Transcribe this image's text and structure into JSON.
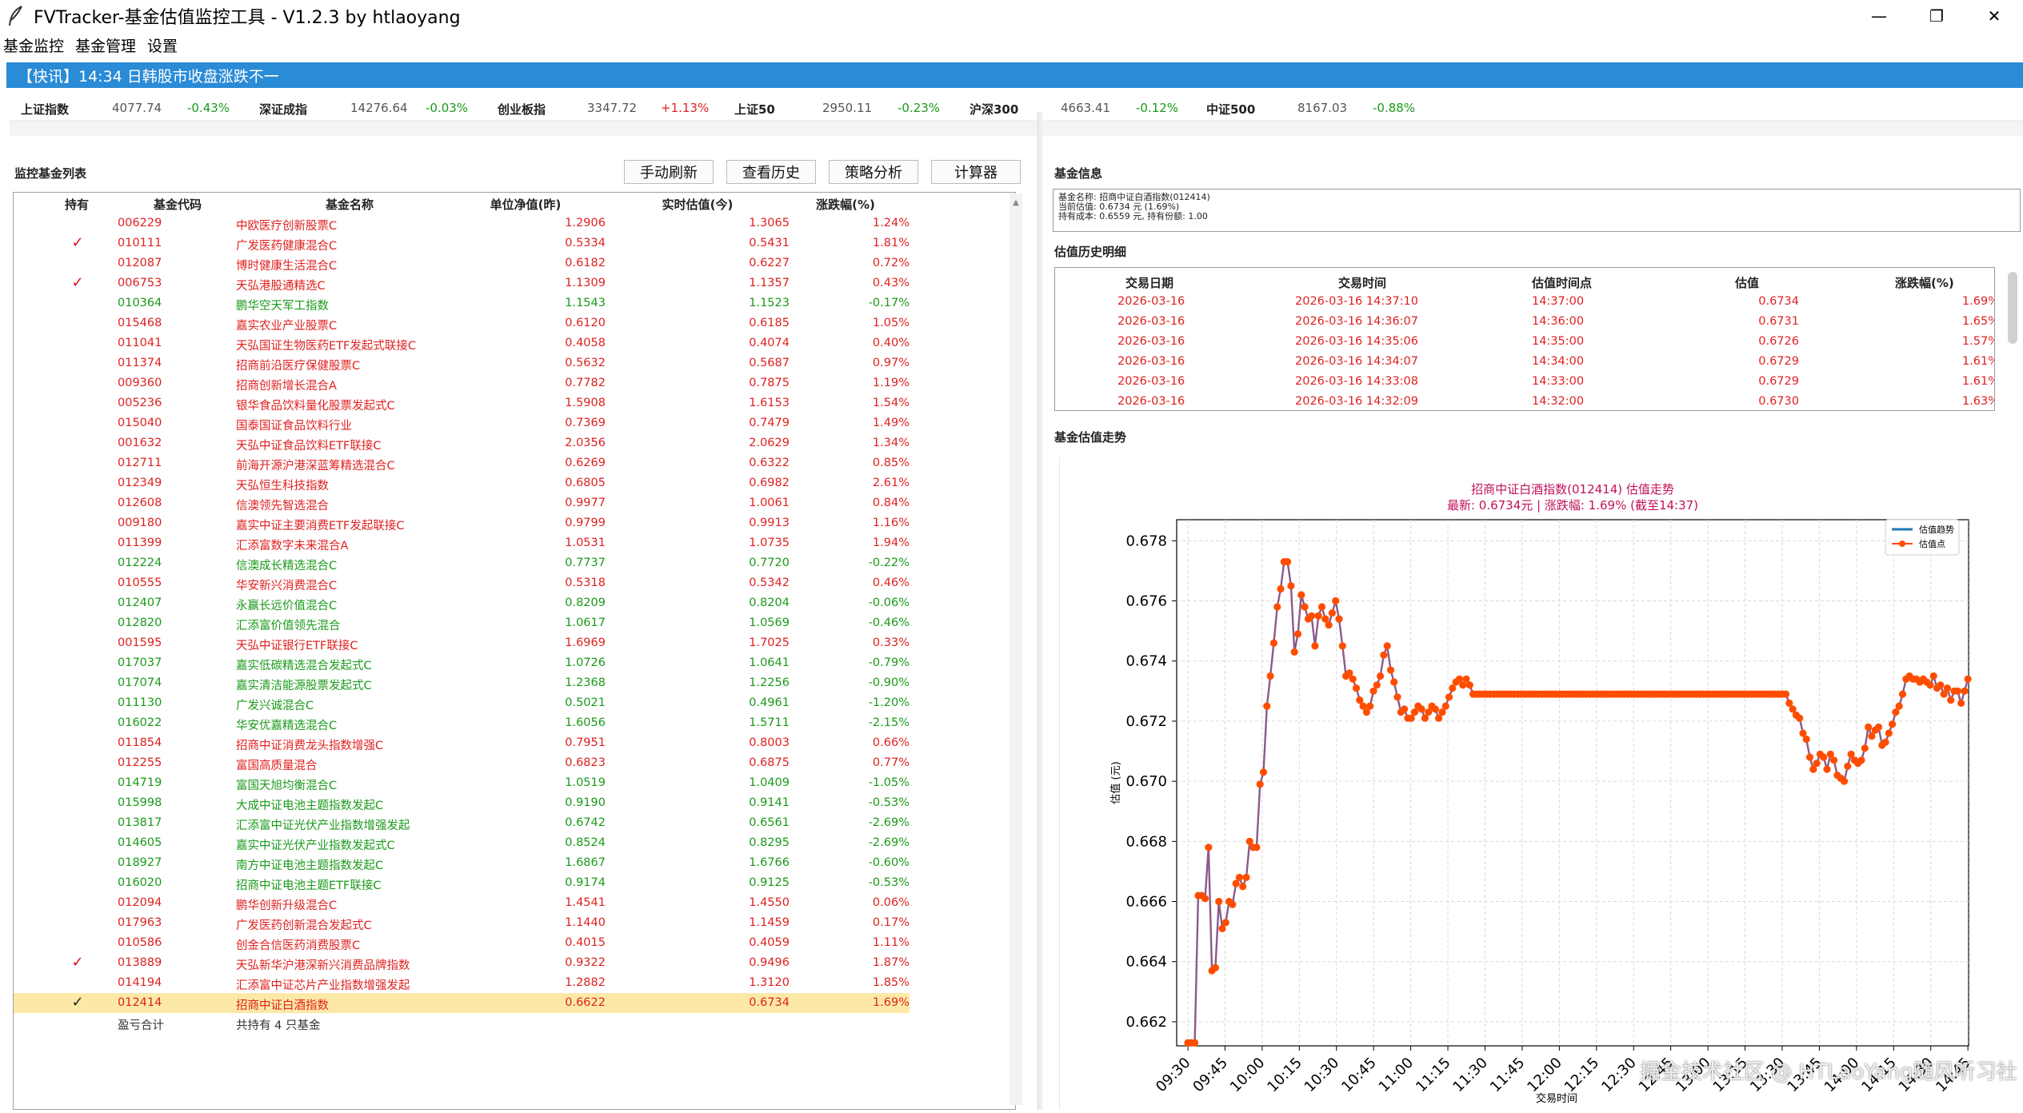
{
  "window": {
    "title": "FVTracker-基金估值监控工具 - V1.2.3    by htlaoyang",
    "minimize": "—",
    "restore": "❐",
    "close": "✕"
  },
  "menu": [
    "基金监控",
    "基金管理",
    "设置"
  ],
  "ticker": "【快讯】14:34 日韩股市收盘涨跌不一",
  "indices": [
    {
      "name": "上证指数",
      "value": "4077.74",
      "change": "-0.43%",
      "dir": "down"
    },
    {
      "name": "深证成指",
      "value": "14276.64",
      "change": "-0.03%",
      "dir": "down"
    },
    {
      "name": "创业板指",
      "value": "3347.72",
      "change": "+1.13%",
      "dir": "up"
    },
    {
      "name": "上证50",
      "value": "2950.11",
      "change": "-0.23%",
      "dir": "down"
    },
    {
      "name": "沪深300",
      "value": "4663.41",
      "change": "-0.12%",
      "dir": "down"
    },
    {
      "name": "中证500",
      "value": "8167.03",
      "change": "-0.88%",
      "dir": "down"
    }
  ],
  "left": {
    "title": "监控基金列表",
    "buttons": [
      "手动刷新",
      "查看历史",
      "策略分析",
      "计算器"
    ],
    "columns": [
      "持有",
      "基金代码",
      "基金名称",
      "单位净值(昨)",
      "实时估值(今)",
      "涨跌幅(%)"
    ],
    "rows": [
      {
        "hold": "",
        "code": "006229",
        "name": "中欧医疗创新股票C",
        "nav": "1.2906",
        "est": "1.3065",
        "chg": "1.24%",
        "dir": "up"
      },
      {
        "hold": "✓",
        "code": "010111",
        "name": "广发医药健康混合C",
        "nav": "0.5334",
        "est": "0.5431",
        "chg": "1.81%",
        "dir": "up"
      },
      {
        "hold": "",
        "code": "012087",
        "name": "博时健康生活混合C",
        "nav": "0.6182",
        "est": "0.6227",
        "chg": "0.72%",
        "dir": "up"
      },
      {
        "hold": "✓",
        "code": "006753",
        "name": "天弘港股通精选C",
        "nav": "1.1309",
        "est": "1.1357",
        "chg": "0.43%",
        "dir": "up"
      },
      {
        "hold": "",
        "code": "010364",
        "name": "鹏华空天军工指数",
        "nav": "1.1543",
        "est": "1.1523",
        "chg": "-0.17%",
        "dir": "down"
      },
      {
        "hold": "",
        "code": "015468",
        "name": "嘉实农业产业股票C",
        "nav": "0.6120",
        "est": "0.6185",
        "chg": "1.05%",
        "dir": "up"
      },
      {
        "hold": "",
        "code": "011041",
        "name": "天弘国证生物医药ETF发起式联接C",
        "nav": "0.4058",
        "est": "0.4074",
        "chg": "0.40%",
        "dir": "up"
      },
      {
        "hold": "",
        "code": "011374",
        "name": "招商前沿医疗保健股票C",
        "nav": "0.5632",
        "est": "0.5687",
        "chg": "0.97%",
        "dir": "up"
      },
      {
        "hold": "",
        "code": "009360",
        "name": "招商创新增长混合A",
        "nav": "0.7782",
        "est": "0.7875",
        "chg": "1.19%",
        "dir": "up"
      },
      {
        "hold": "",
        "code": "005236",
        "name": "银华食品饮料量化股票发起式C",
        "nav": "1.5908",
        "est": "1.6153",
        "chg": "1.54%",
        "dir": "up"
      },
      {
        "hold": "",
        "code": "015040",
        "name": "国泰国证食品饮料行业",
        "nav": "0.7369",
        "est": "0.7479",
        "chg": "1.49%",
        "dir": "up"
      },
      {
        "hold": "",
        "code": "001632",
        "name": "天弘中证食品饮料ETF联接C",
        "nav": "2.0356",
        "est": "2.0629",
        "chg": "1.34%",
        "dir": "up"
      },
      {
        "hold": "",
        "code": "012711",
        "name": "前海开源沪港深蓝筹精选混合C",
        "nav": "0.6269",
        "est": "0.6322",
        "chg": "0.85%",
        "dir": "up"
      },
      {
        "hold": "",
        "code": "012349",
        "name": "天弘恒生科技指数",
        "nav": "0.6805",
        "est": "0.6982",
        "chg": "2.61%",
        "dir": "up"
      },
      {
        "hold": "",
        "code": "012608",
        "name": "信澳领先智选混合",
        "nav": "0.9977",
        "est": "1.0061",
        "chg": "0.84%",
        "dir": "up"
      },
      {
        "hold": "",
        "code": "009180",
        "name": "嘉实中证主要消费ETF发起联接C",
        "nav": "0.9799",
        "est": "0.9913",
        "chg": "1.16%",
        "dir": "up"
      },
      {
        "hold": "",
        "code": "011399",
        "name": "汇添富数字未来混合A",
        "nav": "1.0531",
        "est": "1.0735",
        "chg": "1.94%",
        "dir": "up"
      },
      {
        "hold": "",
        "code": "012224",
        "name": "信澳成长精选混合C",
        "nav": "0.7737",
        "est": "0.7720",
        "chg": "-0.22%",
        "dir": "down"
      },
      {
        "hold": "",
        "code": "010555",
        "name": "华安新兴消费混合C",
        "nav": "0.5318",
        "est": "0.5342",
        "chg": "0.46%",
        "dir": "up"
      },
      {
        "hold": "",
        "code": "012407",
        "name": "永赢长远价值混合C",
        "nav": "0.8209",
        "est": "0.8204",
        "chg": "-0.06%",
        "dir": "down"
      },
      {
        "hold": "",
        "code": "012820",
        "name": "汇添富价值领先混合",
        "nav": "1.0617",
        "est": "1.0569",
        "chg": "-0.46%",
        "dir": "down"
      },
      {
        "hold": "",
        "code": "001595",
        "name": "天弘中证银行ETF联接C",
        "nav": "1.6969",
        "est": "1.7025",
        "chg": "0.33%",
        "dir": "up"
      },
      {
        "hold": "",
        "code": "017037",
        "name": "嘉实低碳精选混合发起式C",
        "nav": "1.0726",
        "est": "1.0641",
        "chg": "-0.79%",
        "dir": "down"
      },
      {
        "hold": "",
        "code": "017074",
        "name": "嘉实清洁能源股票发起式C",
        "nav": "1.2368",
        "est": "1.2256",
        "chg": "-0.90%",
        "dir": "down"
      },
      {
        "hold": "",
        "code": "011130",
        "name": "广发兴诚混合C",
        "nav": "0.5021",
        "est": "0.4961",
        "chg": "-1.20%",
        "dir": "down"
      },
      {
        "hold": "",
        "code": "016022",
        "name": "华安优嘉精选混合C",
        "nav": "1.6056",
        "est": "1.5711",
        "chg": "-2.15%",
        "dir": "down"
      },
      {
        "hold": "",
        "code": "011854",
        "name": "招商中证消费龙头指数增强C",
        "nav": "0.7951",
        "est": "0.8003",
        "chg": "0.66%",
        "dir": "up"
      },
      {
        "hold": "",
        "code": "012255",
        "name": "富国高质量混合",
        "nav": "0.6823",
        "est": "0.6875",
        "chg": "0.77%",
        "dir": "up"
      },
      {
        "hold": "",
        "code": "014719",
        "name": "富国天旭均衡混合C",
        "nav": "1.0519",
        "est": "1.0409",
        "chg": "-1.05%",
        "dir": "down"
      },
      {
        "hold": "",
        "code": "015998",
        "name": "大成中证电池主题指数发起C",
        "nav": "0.9190",
        "est": "0.9141",
        "chg": "-0.53%",
        "dir": "down"
      },
      {
        "hold": "",
        "code": "013817",
        "name": "汇添富中证光伏产业指数增强发起",
        "nav": "0.6742",
        "est": "0.6561",
        "chg": "-2.69%",
        "dir": "down"
      },
      {
        "hold": "",
        "code": "014605",
        "name": "嘉实中证光伏产业指数发起式C",
        "nav": "0.8524",
        "est": "0.8295",
        "chg": "-2.69%",
        "dir": "down"
      },
      {
        "hold": "",
        "code": "018927",
        "name": "南方中证电池主题指数发起C",
        "nav": "1.6867",
        "est": "1.6766",
        "chg": "-0.60%",
        "dir": "down"
      },
      {
        "hold": "",
        "code": "016020",
        "name": "招商中证电池主题ETF联接C",
        "nav": "0.9174",
        "est": "0.9125",
        "chg": "-0.53%",
        "dir": "down"
      },
      {
        "hold": "",
        "code": "012094",
        "name": "鹏华创新升级混合C",
        "nav": "1.4541",
        "est": "1.4550",
        "chg": "0.06%",
        "dir": "up"
      },
      {
        "hold": "",
        "code": "017963",
        "name": "广发医药创新混合发起式C",
        "nav": "1.1440",
        "est": "1.1459",
        "chg": "0.17%",
        "dir": "up"
      },
      {
        "hold": "",
        "code": "010586",
        "name": "创金合信医药消费股票C",
        "nav": "0.4015",
        "est": "0.4059",
        "chg": "1.11%",
        "dir": "up"
      },
      {
        "hold": "✓",
        "code": "013889",
        "name": "天弘新华沪港深新兴消费品牌指数",
        "nav": "0.9322",
        "est": "0.9496",
        "chg": "1.87%",
        "dir": "up"
      },
      {
        "hold": "",
        "code": "014194",
        "name": "汇添富中证芯片产业指数增强发起",
        "nav": "1.2882",
        "est": "1.3120",
        "chg": "1.85%",
        "dir": "up"
      },
      {
        "hold": "✓",
        "code": "012414",
        "name": "招商中证白酒指数",
        "nav": "0.6622",
        "est": "0.6734",
        "chg": "1.69%",
        "dir": "up",
        "selected": true
      }
    ],
    "summary_label": "盈亏合计",
    "summary_text": "共持有 4 只基金"
  },
  "right": {
    "info_title": "基金信息",
    "info_lines": [
      "基金名称: 招商中证白酒指数(012414)",
      "当前估值: 0.6734 元 (1.69%)",
      "持有成本: 0.6559 元, 持有份额: 1.00"
    ],
    "history_title": "估值历史明细",
    "history_columns": [
      "交易日期",
      "交易时间",
      "估值时间点",
      "估值",
      "涨跌幅(%)"
    ],
    "history_rows": [
      [
        "2026-03-16",
        "2026-03-16 14:37:10",
        "14:37:00",
        "0.6734",
        "1.69%"
      ],
      [
        "2026-03-16",
        "2026-03-16 14:36:07",
        "14:36:00",
        "0.6731",
        "1.65%"
      ],
      [
        "2026-03-16",
        "2026-03-16 14:35:06",
        "14:35:00",
        "0.6726",
        "1.57%"
      ],
      [
        "2026-03-16",
        "2026-03-16 14:34:07",
        "14:34:00",
        "0.6729",
        "1.61%"
      ],
      [
        "2026-03-16",
        "2026-03-16 14:33:08",
        "14:33:00",
        "0.6729",
        "1.61%"
      ],
      [
        "2026-03-16",
        "2026-03-16 14:32:09",
        "14:32:00",
        "0.6730",
        "1.63%"
      ]
    ],
    "trend_title": "基金估值走势"
  },
  "watermark": "掘金技术社区 @ HTLaoYang随风听习社",
  "colors": {
    "up": "#e02020",
    "down": "#1a9a1a",
    "line": "#8b5a8a",
    "point": "#ff4d00",
    "legend_line": "#1f77b4"
  },
  "chart_data": {
    "type": "line",
    "title": "招商中证白酒指数(012414) 估值走势",
    "subtitle": "最新: 0.6734元 | 涨跌幅: 1.69% (截至14:37)",
    "xlabel": "交易时间",
    "ylabel": "估值 (元)",
    "ylim": [
      0.6612,
      0.6787
    ],
    "yticks": [
      "0.662",
      "0.664",
      "0.666",
      "0.668",
      "0.670",
      "0.672",
      "0.674",
      "0.676",
      "0.678"
    ],
    "xticks": [
      "09:30",
      "09:45",
      "10:00",
      "10:15",
      "10:30",
      "10:45",
      "11:00",
      "11:15",
      "11:30",
      "11:45",
      "12:00",
      "12:15",
      "12:30",
      "12:45",
      "13:00",
      "13:15",
      "13:30",
      "13:45",
      "14:00",
      "14:15",
      "14:30",
      "14:45"
    ],
    "legend": [
      "估值趋势",
      "估值点"
    ],
    "legend_position": "top-right",
    "grid": true,
    "series": [
      {
        "name": "估值趋势",
        "x": [
          0,
          1,
          2,
          3,
          4,
          5,
          6,
          7,
          8,
          9,
          10,
          11,
          12,
          13,
          14,
          15,
          16,
          17,
          18,
          19,
          20,
          21,
          22,
          23,
          24,
          25,
          26,
          27,
          28,
          29,
          30,
          31,
          32,
          33,
          34,
          35,
          36,
          37,
          38,
          39,
          40,
          41,
          42,
          43,
          44,
          45,
          46,
          47,
          48,
          49,
          50,
          51,
          52,
          53,
          54,
          55,
          56,
          57,
          58,
          59,
          60,
          61,
          62,
          63,
          64,
          65,
          66,
          67,
          68,
          69,
          70,
          71,
          72,
          73,
          74,
          75,
          76,
          77,
          78,
          79,
          80,
          81,
          82,
          83,
          84,
          85,
          86,
          87,
          88,
          89,
          90,
          91,
          92,
          93,
          94,
          95,
          96,
          97,
          98,
          99,
          100,
          101,
          102,
          103,
          104,
          105,
          106,
          107,
          108,
          109,
          110,
          111,
          112,
          113,
          114,
          115,
          116,
          117,
          118,
          119,
          120,
          121,
          122,
          123,
          124,
          125,
          126,
          127,
          128,
          129,
          130,
          131,
          132,
          133,
          134,
          135,
          136,
          137,
          138,
          139,
          140,
          141,
          142,
          143,
          144,
          145,
          146,
          147,
          148,
          149,
          150,
          151,
          152,
          153,
          154,
          155,
          156,
          157,
          158,
          159,
          160,
          161,
          162,
          163,
          164,
          165,
          166,
          167,
          168,
          169,
          170,
          171,
          172,
          173,
          174,
          175,
          176,
          177,
          178,
          179,
          180,
          181,
          182,
          183,
          184,
          185,
          186,
          187,
          188,
          189,
          190,
          191,
          192,
          193,
          194,
          195,
          196,
          197,
          198,
          199,
          200,
          201,
          202,
          203,
          204,
          205,
          206,
          207,
          208,
          209,
          210,
          211,
          212,
          213,
          214,
          215,
          216,
          217,
          218,
          219,
          220,
          221,
          222,
          223,
          224,
          225,
          226,
          227
        ],
        "values": [
          0.6613,
          0.6613,
          0.6613,
          0.6662,
          0.6662,
          0.6661,
          0.6678,
          0.6637,
          0.6638,
          0.666,
          0.6651,
          0.6653,
          0.666,
          0.6659,
          0.6666,
          0.6668,
          0.6665,
          0.6668,
          0.668,
          0.6678,
          0.6678,
          0.6699,
          0.6703,
          0.6725,
          0.6735,
          0.6746,
          0.6758,
          0.6764,
          0.6773,
          0.6773,
          0.6765,
          0.6743,
          0.6749,
          0.6762,
          0.6758,
          0.6754,
          0.6755,
          0.6745,
          0.6755,
          0.6758,
          0.6754,
          0.6752,
          0.6756,
          0.676,
          0.6754,
          0.6745,
          0.6735,
          0.6736,
          0.6734,
          0.6731,
          0.6727,
          0.6725,
          0.6723,
          0.6725,
          0.673,
          0.6732,
          0.6735,
          0.6742,
          0.6745,
          0.6737,
          0.6733,
          0.6728,
          0.6723,
          0.6724,
          0.6721,
          0.6721,
          0.6723,
          0.6725,
          0.6724,
          0.6721,
          0.6723,
          0.6725,
          0.6724,
          0.6721,
          0.6723,
          0.6725,
          0.6728,
          0.6731,
          0.6733,
          0.6734,
          0.6732,
          0.6734,
          0.6732,
          0.6729,
          0.6729,
          0.6729,
          0.6729,
          0.6729,
          0.6729,
          0.6729,
          0.6729,
          0.6729,
          0.6729,
          0.6729,
          0.6729,
          0.6729,
          0.6729,
          0.6729,
          0.6729,
          0.6729,
          0.6729,
          0.6729,
          0.6729,
          0.6729,
          0.6729,
          0.6729,
          0.6729,
          0.6729,
          0.6729,
          0.6729,
          0.6729,
          0.6729,
          0.6729,
          0.6729,
          0.6729,
          0.6729,
          0.6729,
          0.6729,
          0.6729,
          0.6729,
          0.6729,
          0.6729,
          0.6729,
          0.6729,
          0.6729,
          0.6729,
          0.6729,
          0.6729,
          0.6729,
          0.6729,
          0.6729,
          0.6729,
          0.6729,
          0.6729,
          0.6729,
          0.6729,
          0.6729,
          0.6729,
          0.6729,
          0.6729,
          0.6729,
          0.6729,
          0.6729,
          0.6729,
          0.6729,
          0.6729,
          0.6729,
          0.6729,
          0.6729,
          0.6729,
          0.6729,
          0.6729,
          0.6729,
          0.6729,
          0.6729,
          0.6729,
          0.6729,
          0.6729,
          0.6729,
          0.6729,
          0.6729,
          0.6729,
          0.6729,
          0.6729,
          0.6729,
          0.6729,
          0.6729,
          0.6729,
          0.6729,
          0.6729,
          0.6729,
          0.6729,
          0.6729,
          0.6729,
          0.6729,
          0.6726,
          0.6724,
          0.6722,
          0.6721,
          0.6716,
          0.6714,
          0.6708,
          0.6704,
          0.6706,
          0.6709,
          0.6708,
          0.6704,
          0.6709,
          0.6707,
          0.6702,
          0.6701,
          0.67,
          0.6705,
          0.6709,
          0.6707,
          0.6706,
          0.6707,
          0.6711,
          0.6718,
          0.6715,
          0.6717,
          0.6718,
          0.6712,
          0.6713,
          0.6716,
          0.6719,
          0.6723,
          0.6725,
          0.6729,
          0.6734,
          0.6735,
          0.6734,
          0.6734,
          0.6733,
          0.6734,
          0.6733,
          0.6732,
          0.6735,
          0.6731,
          0.6732,
          0.6729,
          0.6731,
          0.6727,
          0.673,
          0.673,
          0.6726,
          0.673,
          0.6734
        ]
      }
    ]
  }
}
